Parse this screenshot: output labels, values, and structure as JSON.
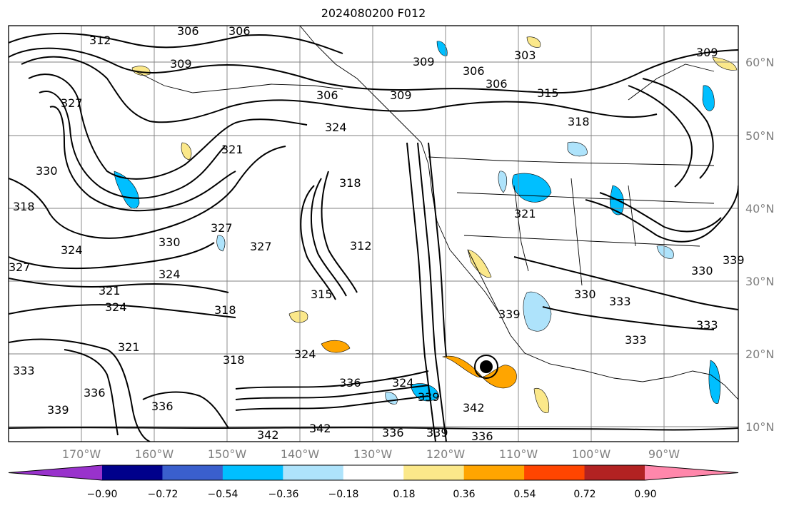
{
  "title": "2024080200 F012",
  "map": {
    "lat_labels": [
      "60°N",
      "50°N",
      "40°N",
      "30°N",
      "20°N",
      "10°N"
    ],
    "lon_labels": [
      "170°W",
      "160°W",
      "150°W",
      "140°W",
      "130°W",
      "120°W",
      "110°W",
      "100°W",
      "90°W"
    ],
    "contour_labels": [
      "306",
      "306",
      "312",
      "309",
      "309",
      "306",
      "306",
      "303",
      "309",
      "315",
      "306",
      "309",
      "324",
      "318",
      "321",
      "327",
      "330",
      "318",
      "318",
      "327",
      "330",
      "324",
      "327",
      "321",
      "324",
      "327",
      "312",
      "315",
      "321",
      "324",
      "318",
      "321",
      "324",
      "318",
      "324",
      "333",
      "336",
      "339",
      "336",
      "339",
      "342",
      "342",
      "342",
      "336",
      "339",
      "336",
      "336",
      "339",
      "330",
      "333",
      "333",
      "333",
      "330",
      "339"
    ],
    "contour_color": "#000000",
    "land_outline_color": "#000000",
    "gridline_color": "#808080"
  },
  "colorbar": {
    "tick_labels": [
      "−0.90",
      "−0.72",
      "−0.54",
      "−0.36",
      "−0.18",
      "0.18",
      "0.36",
      "0.54",
      "0.72",
      "0.90"
    ],
    "colors": [
      "#9932cc",
      "#00008b",
      "#3a5fcd",
      "#00bfff",
      "#aee3fb",
      "#ffffff",
      "#fbe88a",
      "#ffa500",
      "#ff4500",
      "#b22222",
      "#ff87ab"
    ]
  }
}
